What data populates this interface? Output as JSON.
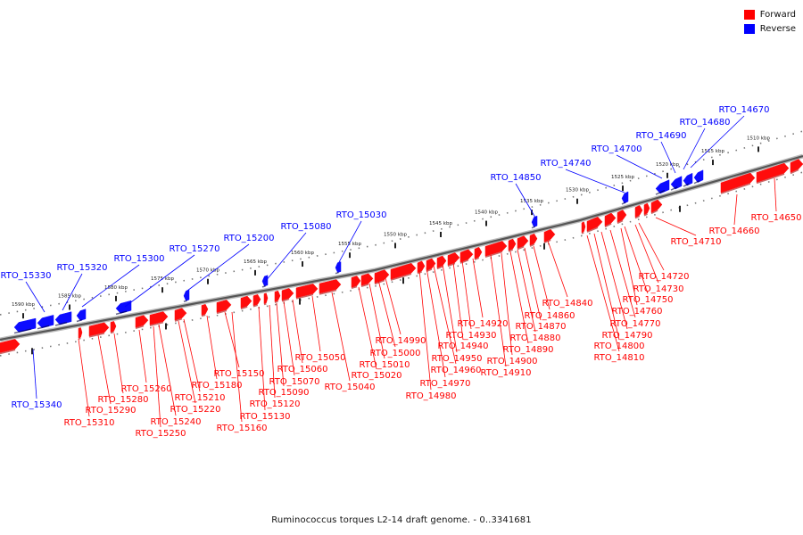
{
  "legend": {
    "forward_label": "Forward",
    "reverse_label": "Reverse",
    "forward_color": "#ff0000",
    "reverse_color": "#0000ff"
  },
  "caption": "Ruminococcus torques L2-14 draft genome. - 0..3341681",
  "scale_labels": [
    "1510 kbp",
    "1515 kbp",
    "1520 kbp",
    "1525 kbp",
    "1530 kbp",
    "1535 kbp",
    "1540 kbp",
    "1545 kbp",
    "1550 kbp",
    "1555 kbp",
    "1560 kbp",
    "1565 kbp",
    "1570 kbp",
    "1575 kbp",
    "1580 kbp",
    "1585 kbp",
    "1590 kbp"
  ],
  "reverse_genes": [
    "RTO_14670",
    "RTO_14680",
    "RTO_14690",
    "RTO_14700",
    "RTO_14740",
    "RTO_14850",
    "RTO_15030",
    "RTO_15080",
    "RTO_15200",
    "RTO_15270",
    "RTO_15300",
    "RTO_15320",
    "RTO_15330",
    "RTO_15340"
  ],
  "forward_genes": [
    "RTO_14650",
    "RTO_14660",
    "RTO_14710",
    "RTO_14720",
    "RTO_14730",
    "RTO_14750",
    "RTO_14760",
    "RTO_14770",
    "RTO_14790",
    "RTO_14800",
    "RTO_14810",
    "RTO_14840",
    "RTO_14860",
    "RTO_14870",
    "RTO_14880",
    "RTO_14890",
    "RTO_14900",
    "RTO_14910",
    "RTO_14920",
    "RTO_14930",
    "RTO_14940",
    "RTO_14950",
    "RTO_14960",
    "RTO_14970",
    "RTO_14980",
    "RTO_14990",
    "RTO_15000",
    "RTO_15010",
    "RTO_15020",
    "RTO_15040",
    "RTO_15050",
    "RTO_15060",
    "RTO_15070",
    "RTO_15090",
    "RTO_15120",
    "RTO_15130",
    "RTO_15150",
    "RTO_15160",
    "RTO_15180",
    "RTO_15210",
    "RTO_15220",
    "RTO_15240",
    "RTO_15250",
    "RTO_15260",
    "RTO_15280",
    "RTO_15290",
    "RTO_15310"
  ]
}
